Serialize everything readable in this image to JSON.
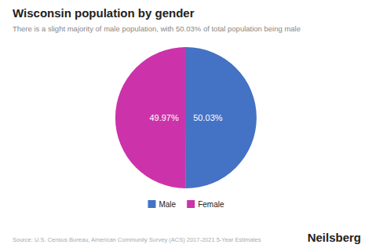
{
  "chart_data": {
    "type": "pie",
    "title": "Wisconsin population by gender",
    "subtitle": "There is a slight majority of male population, with 50.03% of total population being male",
    "categories": [
      "Male",
      "Female"
    ],
    "values": [
      50.03,
      49.97
    ],
    "value_labels": [
      "50.03%",
      "49.97%"
    ],
    "colors": [
      "#4472C4",
      "#CC33AA"
    ],
    "data_labels": true,
    "legend": "bottom",
    "annotations": [
      "Source: U.S. Census Bureau, American Community Survey (ACS) 2017-2021 5-Year Estimates",
      "Neilsberg"
    ]
  }
}
